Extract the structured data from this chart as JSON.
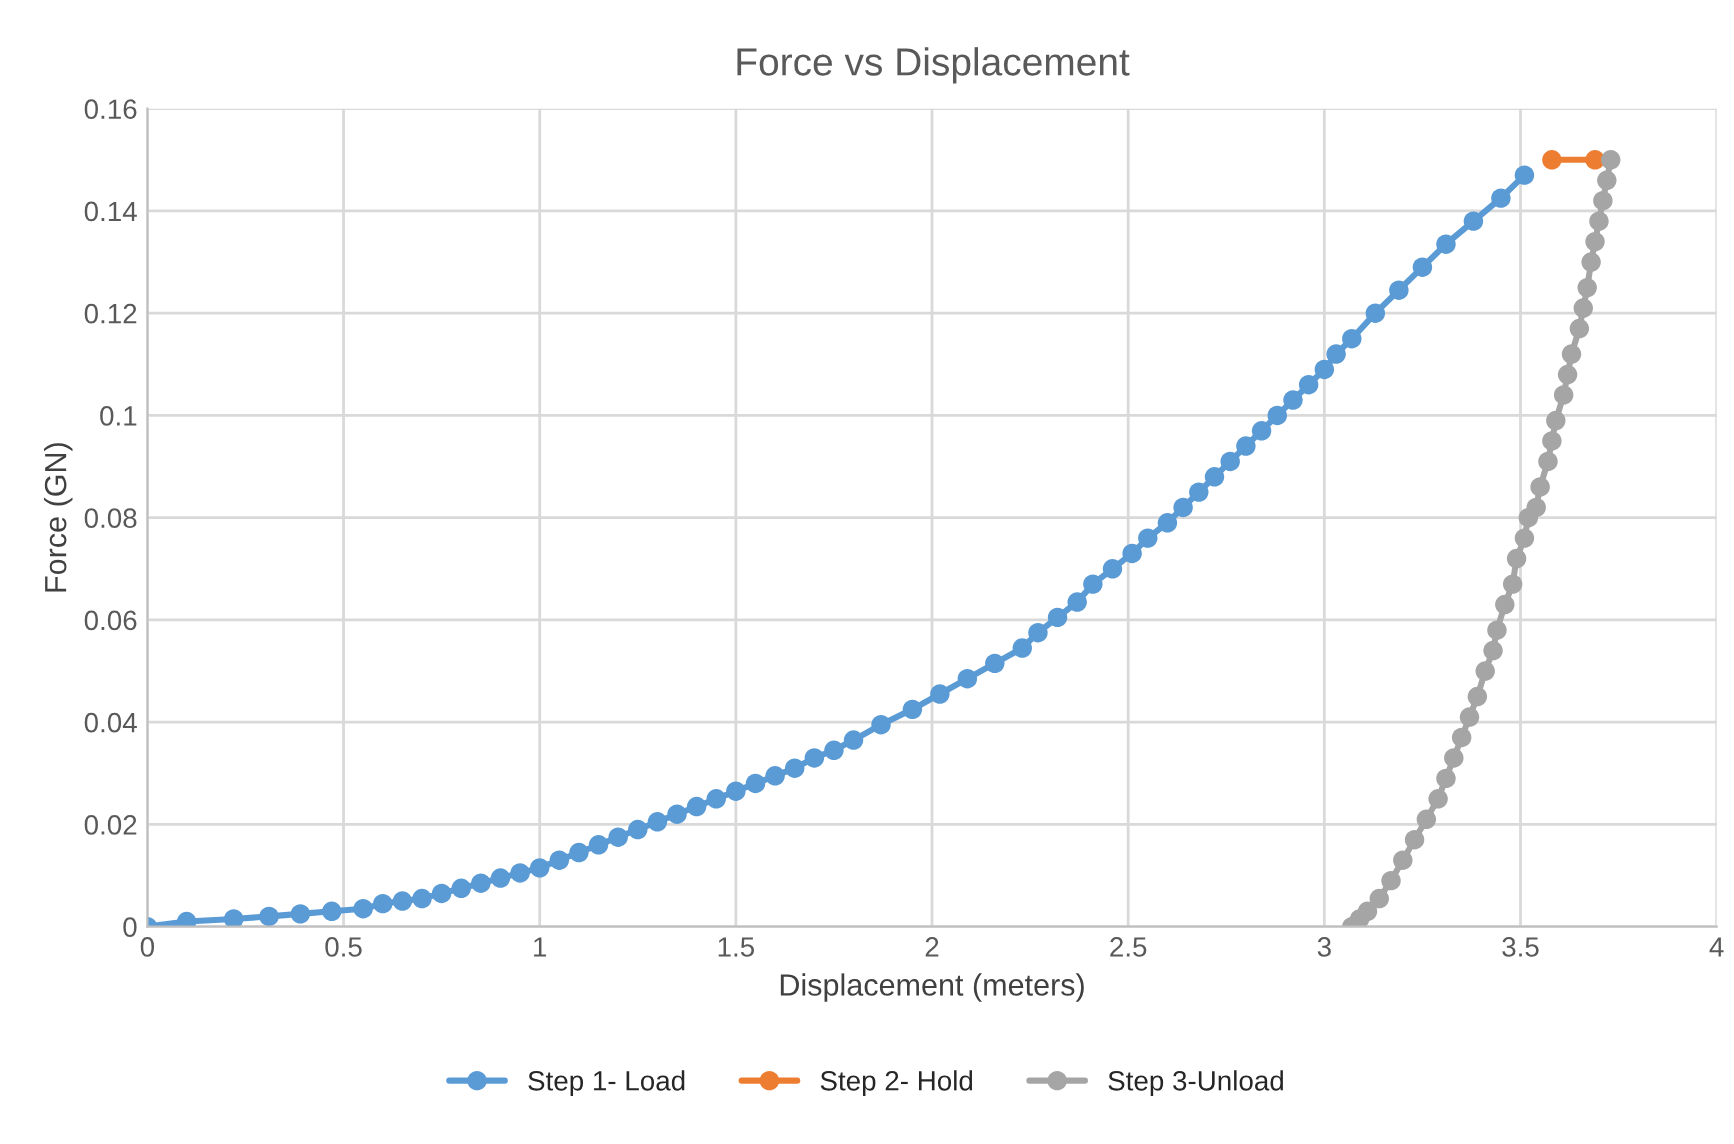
{
  "chart_data": {
    "type": "line",
    "title": "Force vs Displacement",
    "xlabel": "Displacement (meters)",
    "ylabel": "Force (GN)",
    "xlim": [
      0,
      4
    ],
    "xticks": [
      0,
      0.5,
      1,
      1.5,
      2,
      2.5,
      3,
      3.5,
      4
    ],
    "ylim": [
      0,
      0.16
    ],
    "yticks": [
      0,
      0.02,
      0.04,
      0.06,
      0.08,
      0.1,
      0.12,
      0.14,
      0.16
    ],
    "grid": true,
    "legend": "bottom",
    "marker": "circle",
    "line_style": "solid",
    "series": [
      {
        "name": "Step 1- Load",
        "color": "#5b9bd5",
        "x": [
          0,
          0.1,
          0.22,
          0.31,
          0.39,
          0.47,
          0.55,
          0.6,
          0.65,
          0.7,
          0.75,
          0.8,
          0.85,
          0.9,
          0.95,
          1.0,
          1.05,
          1.1,
          1.15,
          1.2,
          1.25,
          1.3,
          1.35,
          1.4,
          1.45,
          1.5,
          1.55,
          1.6,
          1.65,
          1.7,
          1.75,
          1.8,
          1.87,
          1.95,
          2.02,
          2.09,
          2.16,
          2.23,
          2.27,
          2.32,
          2.37,
          2.41,
          2.46,
          2.51,
          2.55,
          2.6,
          2.64,
          2.68,
          2.72,
          2.76,
          2.8,
          2.84,
          2.88,
          2.92,
          2.96,
          3.0,
          3.03,
          3.07,
          3.13,
          3.19,
          3.25,
          3.31,
          3.38,
          3.45,
          3.51
        ],
        "values": [
          0,
          0.001,
          0.0015,
          0.002,
          0.0025,
          0.003,
          0.0035,
          0.0045,
          0.005,
          0.0055,
          0.0065,
          0.0075,
          0.0085,
          0.0095,
          0.0105,
          0.0115,
          0.013,
          0.0145,
          0.016,
          0.0175,
          0.019,
          0.0205,
          0.022,
          0.0235,
          0.025,
          0.0265,
          0.028,
          0.0295,
          0.031,
          0.033,
          0.0345,
          0.0365,
          0.0395,
          0.0425,
          0.0455,
          0.0485,
          0.0515,
          0.0545,
          0.0575,
          0.0605,
          0.0635,
          0.067,
          0.07,
          0.073,
          0.076,
          0.079,
          0.082,
          0.085,
          0.088,
          0.091,
          0.094,
          0.097,
          0.1,
          0.103,
          0.106,
          0.109,
          0.112,
          0.115,
          0.12,
          0.1245,
          0.129,
          0.1335,
          0.138,
          0.1425,
          0.147
        ]
      },
      {
        "name": "Step 2- Hold",
        "color": "#ed7d31",
        "x": [
          3.58,
          3.69
        ],
        "values": [
          0.15,
          0.15
        ]
      },
      {
        "name": "Step 3-Unload",
        "color": "#a5a5a5",
        "x": [
          3.73,
          3.72,
          3.71,
          3.7,
          3.69,
          3.68,
          3.67,
          3.66,
          3.65,
          3.63,
          3.62,
          3.61,
          3.59,
          3.58,
          3.57,
          3.55,
          3.54,
          3.52,
          3.51,
          3.49,
          3.48,
          3.46,
          3.44,
          3.43,
          3.41,
          3.39,
          3.37,
          3.35,
          3.33,
          3.31,
          3.29,
          3.26,
          3.23,
          3.2,
          3.17,
          3.14,
          3.11,
          3.09,
          3.07
        ],
        "values": [
          0.15,
          0.146,
          0.142,
          0.138,
          0.134,
          0.13,
          0.125,
          0.121,
          0.117,
          0.112,
          0.108,
          0.104,
          0.099,
          0.095,
          0.091,
          0.086,
          0.082,
          0.08,
          0.076,
          0.072,
          0.067,
          0.063,
          0.058,
          0.054,
          0.05,
          0.045,
          0.041,
          0.037,
          0.033,
          0.029,
          0.025,
          0.021,
          0.017,
          0.013,
          0.009,
          0.0055,
          0.003,
          0.0015,
          0
        ]
      }
    ]
  }
}
